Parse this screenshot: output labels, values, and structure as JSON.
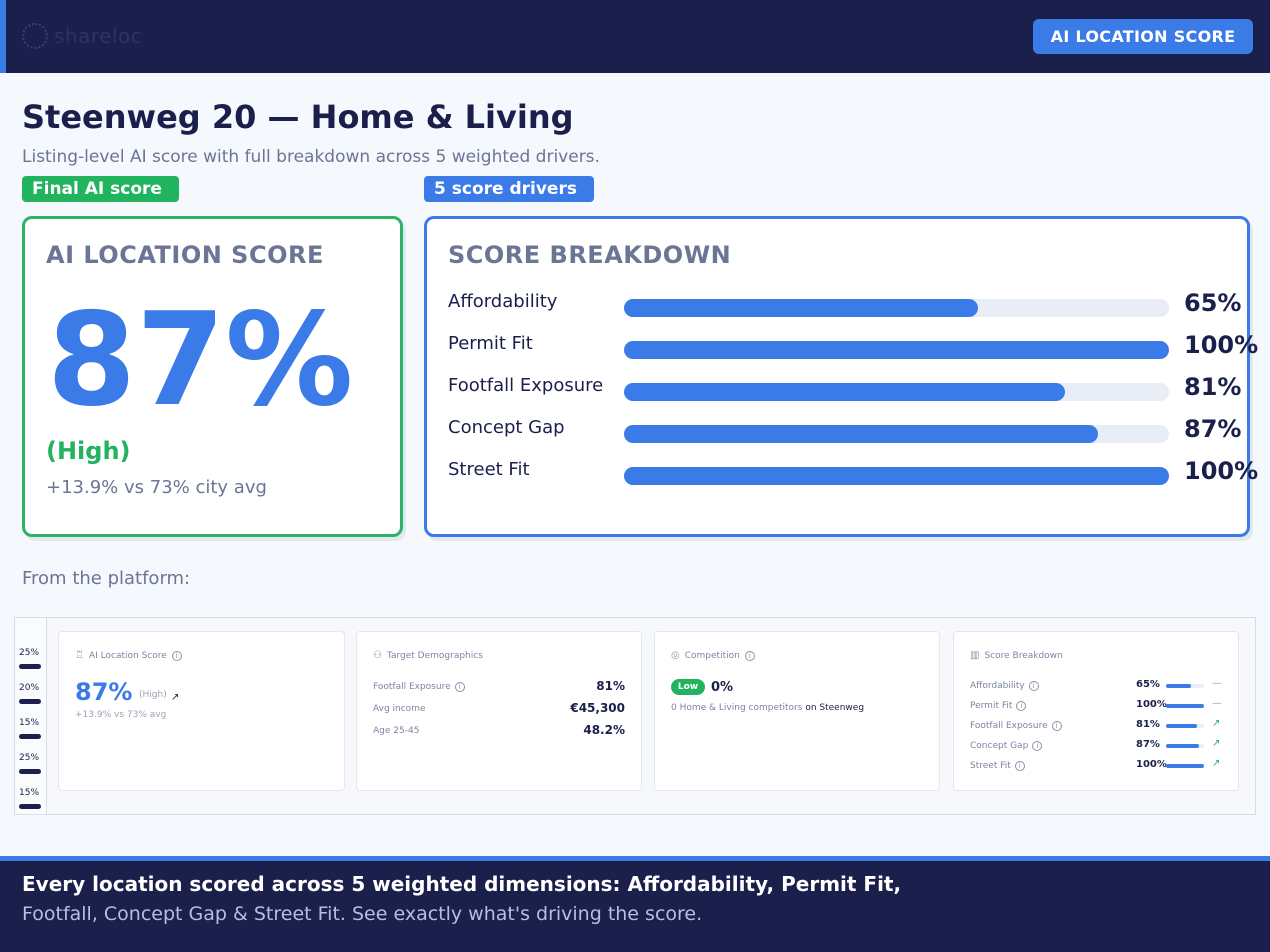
{
  "header": {
    "brand": "shareloc",
    "badge": "AI LOCATION SCORE"
  },
  "title": "Steenweg 20 — Home & Living",
  "subtitle": "Listing-level AI score with full breakdown across 5 weighted drivers.",
  "tags": {
    "final": "Final AI score",
    "drivers": "5 score drivers"
  },
  "score_card": {
    "heading": "AI LOCATION SCORE",
    "score": "87%",
    "level": "(High)",
    "delta": "+13.9% vs 73% city avg"
  },
  "breakdown": {
    "heading": "SCORE BREAKDOWN",
    "drivers": [
      {
        "label": "Affordability",
        "value": "65%",
        "fraction": 0.65
      },
      {
        "label": "Permit Fit",
        "value": "100%",
        "fraction": 1.0
      },
      {
        "label": "Footfall Exposure",
        "value": "81%",
        "fraction": 0.81
      },
      {
        "label": "Concept Gap",
        "value": "87%",
        "fraction": 0.87
      },
      {
        "label": "Street Fit",
        "value": "100%",
        "fraction": 1.0
      }
    ]
  },
  "platform_label": "From the platform:",
  "platform": {
    "sidebar": [
      "25%",
      "20%",
      "15%",
      "25%",
      "15%"
    ],
    "ai_card": {
      "title": "AI Location Score",
      "score": "87%",
      "level": "(High)",
      "delta": "+13.9% vs 73% avg"
    },
    "demo_card": {
      "title": "Target Demographics",
      "rows": [
        {
          "label": "Footfall Exposure",
          "value": "81%"
        },
        {
          "label": "Avg income",
          "value": "€45,300"
        },
        {
          "label": "Age 25-45",
          "value": "48.2%"
        }
      ]
    },
    "comp_card": {
      "title": "Competition",
      "pill": "Low",
      "value": "0%",
      "text": "0 Home & Living competitors",
      "text_on": "on Steenweg"
    },
    "breakdown_card": {
      "title": "Score Breakdown",
      "rows": [
        {
          "label": "Affordability",
          "value": "65%",
          "fraction": 0.65,
          "trend": "—"
        },
        {
          "label": "Permit Fit",
          "value": "100%",
          "fraction": 1.0,
          "trend": "—"
        },
        {
          "label": "Footfall Exposure",
          "value": "81%",
          "fraction": 0.81,
          "trend": "↗"
        },
        {
          "label": "Concept Gap",
          "value": "87%",
          "fraction": 0.87,
          "trend": "↗"
        },
        {
          "label": "Street Fit",
          "value": "100%",
          "fraction": 1.0,
          "trend": "↗"
        }
      ]
    }
  },
  "footer": {
    "line1": "Every location scored across 5 weighted dimensions: Affordability, Permit Fit,",
    "line2": "Footfall, Concept Gap & Street Fit. See exactly what's driving the score."
  },
  "colors": {
    "navy": "#1b1f4b",
    "accent_blue": "#3b7be8",
    "success_green": "#22b35e",
    "muted_text": "#6b7594"
  }
}
